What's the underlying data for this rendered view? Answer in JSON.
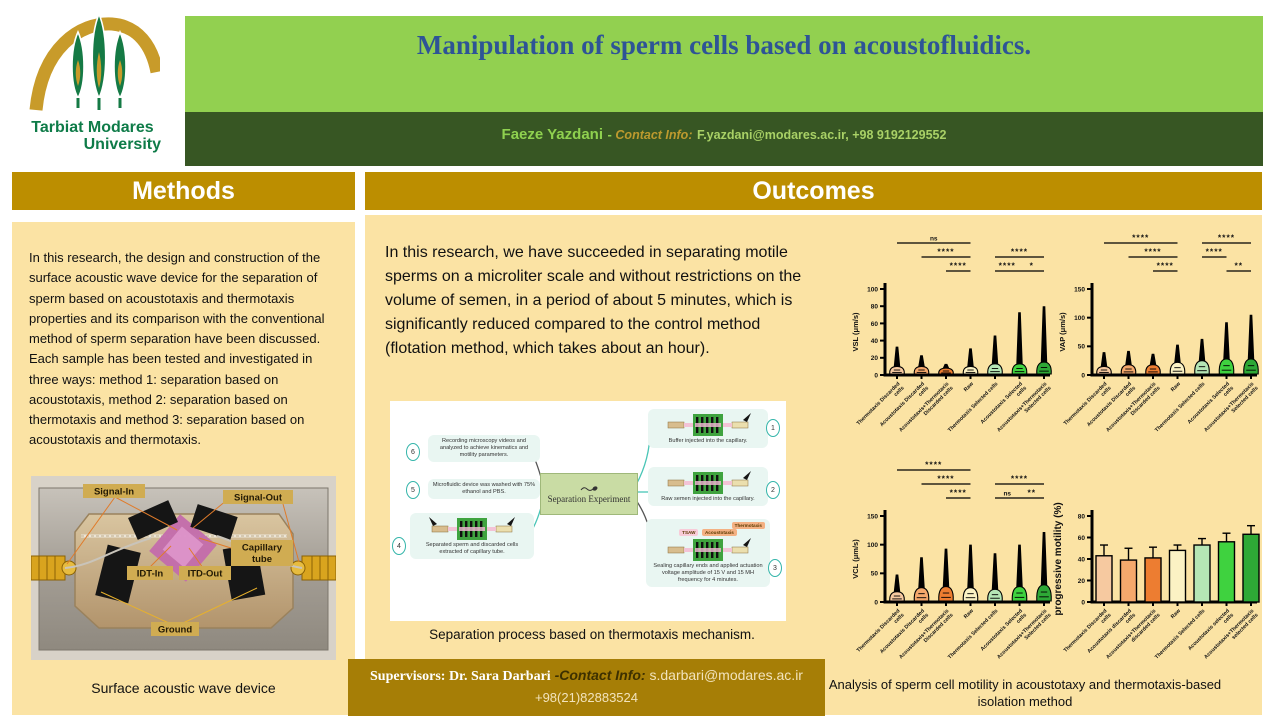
{
  "logo": {
    "line1": "Tarbiat Modares",
    "line2": "University"
  },
  "header": {
    "title": "Manipulation of sperm cells based on acoustofluidics.",
    "author": "Faeze Yazdani",
    "dash": "- ",
    "contact_label": "Contact Info:",
    "contact_value": "F.yazdani@modares.ac.ir, +98 9192129552"
  },
  "methods": {
    "heading": "Methods",
    "paragraph": "In this research, the design and construction of the surface acoustic wave device for the separation of sperm based on acoustotaxis and thermotaxis properties and its comparison with the conventional method of sperm separation have been discussed. Each sample has been tested and investigated in three ways: method 1: separation based on acoustotaxis, method 2: separation based on thermotaxis and method 3: separation based on acoustotaxis and thermotaxis.",
    "photo": {
      "labels": {
        "signal_in": "Signal-In",
        "signal_out": "Signal-Out",
        "capillary_1": "Capillary",
        "capillary_2": "tube",
        "idt_in": "IDT-In",
        "itd_out": "ITD-Out",
        "ground": "Ground"
      },
      "caption": "Surface acoustic wave device"
    }
  },
  "outcomes": {
    "heading": "Outcomes",
    "paragraph": "In this research, we have succeeded in separating motile sperms on a microliter scale and without restrictions on the volume of semen, in a period of about 5 minutes, which is significantly reduced compared to the control method (flotation method, which takes about an hour).",
    "diagram": {
      "center_label": "Separation Experiment",
      "nodes": [
        {
          "num": "1",
          "text": "Buffer injected into the capillary."
        },
        {
          "num": "2",
          "text": "Raw semen injected into the capillary."
        },
        {
          "num": "3",
          "text": "Sealing capillary ends and applied actuation voltage amplitude of 15 V and 15 MH frequency for 4 minutes."
        },
        {
          "num": "4",
          "text": "Separated sperm and discarded cells extracted of capillary tube."
        },
        {
          "num": "5",
          "text": "Microfluidic device was washed with 75% ethanol and PBS."
        },
        {
          "num": "6",
          "text": "Recording microscopy videos and analyzed to achieve kinematics and motility parameters."
        }
      ],
      "arrow_labels": {
        "tsaw": "TSAW",
        "thermotaxis": "Thermotaxis",
        "acoustotaxis": "Acoustotaxis"
      },
      "caption": "Separation process based on thermotaxis mechanism."
    }
  },
  "supervisors": {
    "label": "Supervisors: Dr. Sara Darbari",
    "dash": " -",
    "contact_label": "Contact Info:",
    "email": " s.darbari@modares.ac.ir",
    "phone": "+98(21)82883524"
  },
  "figures_caption": "Analysis of sperm cell motility in acoustotaxy and thermotaxis-based isolation method",
  "chart_data": [
    {
      "type": "violin",
      "ylabel": "VSL (μm/s)",
      "ylim": [
        0,
        100
      ],
      "yticks": [
        0,
        20,
        40,
        60,
        80,
        100
      ],
      "categories": [
        "Thermotaxis Discarded cells",
        "Acoustotaxis Discarded cells",
        "Acoustotaxis+Thermotaxis Discarded cells",
        "Raw",
        "Thermotaxis Selected cells",
        "Acoustotaxis Selected cells",
        "Acoustotaxis+Thermotaxis Selected cells"
      ],
      "colors": [
        "#F6C9A0",
        "#F5A86C",
        "#ED7D31",
        "#FBF2C4",
        "#B5E6B5",
        "#3FD23F",
        "#2EA836"
      ],
      "max_values": [
        33,
        23,
        13,
        31,
        46,
        73,
        80
      ],
      "bulb_tops": [
        10,
        10,
        8,
        10,
        13,
        13,
        15
      ],
      "annotations": [
        {
          "text": "ns",
          "from": 0,
          "to": 3,
          "row": 0
        },
        {
          "text": "****",
          "from": 1,
          "to": 3,
          "row": 1
        },
        {
          "text": "****",
          "from": 4,
          "to": 6,
          "row": 1
        },
        {
          "text": "****",
          "from": 2,
          "to": 3,
          "row": 2
        },
        {
          "text": "****",
          "from": 4,
          "to": 5,
          "row": 2
        },
        {
          "text": "*",
          "from": 5,
          "to": 6,
          "row": 2
        }
      ]
    },
    {
      "type": "violin",
      "ylabel": "VAP (μm/s)",
      "ylim": [
        0,
        150
      ],
      "yticks": [
        0,
        50,
        100,
        150
      ],
      "categories": [
        "Thermotaxis Discarded cells",
        "Acoustotaxis Discarded cells",
        "Acoustotaxis+Thermotaxis Discarded cells",
        "Raw",
        "Thermotaxis Selected cells",
        "Acoustotaxis Selected cells",
        "Acoustotaxis+Thermotaxis Selected cells"
      ],
      "colors": [
        "#F6C9A0",
        "#F5A86C",
        "#ED7D31",
        "#FBF2C4",
        "#B5E6B5",
        "#3FD23F",
        "#2EA836"
      ],
      "max_values": [
        40,
        42,
        37,
        53,
        63,
        92,
        105
      ],
      "bulb_tops": [
        15,
        18,
        18,
        22,
        25,
        28,
        28
      ],
      "annotations": [
        {
          "text": "****",
          "from": 0,
          "to": 3,
          "row": 0
        },
        {
          "text": "****",
          "from": 4,
          "to": 6,
          "row": 0
        },
        {
          "text": "****",
          "from": 1,
          "to": 3,
          "row": 1
        },
        {
          "text": "****",
          "from": 4,
          "to": 5,
          "row": 1
        },
        {
          "text": "****",
          "from": 2,
          "to": 3,
          "row": 2
        },
        {
          "text": "**",
          "from": 5,
          "to": 6,
          "row": 2
        }
      ]
    },
    {
      "type": "violin",
      "ylabel": "VCL (μm/s)",
      "ylim": [
        0,
        150
      ],
      "yticks": [
        0,
        50,
        100,
        150
      ],
      "categories": [
        "Thermotaxis Discarded cells",
        "Acoustotaxis Discarded cells",
        "Acoustotaxis+Thermotaxis Discarded cells",
        "Raw",
        "Thermotaxis Selected cells",
        "Acoustotaxis Selected cells",
        "Acoustotaxis+Thermotaxis Selected cells"
      ],
      "colors": [
        "#F6C9A0",
        "#F5A86C",
        "#ED7D31",
        "#FBF2C4",
        "#B5E6B5",
        "#3FD23F",
        "#2EA836"
      ],
      "max_values": [
        48,
        78,
        93,
        100,
        85,
        100,
        122
      ],
      "bulb_tops": [
        18,
        25,
        27,
        25,
        22,
        27,
        30
      ],
      "annotations": [
        {
          "text": "****",
          "from": 0,
          "to": 3,
          "row": 0
        },
        {
          "text": "****",
          "from": 1,
          "to": 3,
          "row": 1
        },
        {
          "text": "****",
          "from": 4,
          "to": 6,
          "row": 1
        },
        {
          "text": "****",
          "from": 2,
          "to": 3,
          "row": 2
        },
        {
          "text": "ns",
          "from": 4,
          "to": 5,
          "row": 2
        },
        {
          "text": "**",
          "from": 5,
          "to": 6,
          "row": 2
        }
      ]
    },
    {
      "type": "bar",
      "ylabel": "progressive motility (%)",
      "ylim": [
        0,
        80
      ],
      "yticks": [
        0,
        20,
        40,
        60,
        80
      ],
      "categories": [
        "Thermotaxis Discarded cells",
        "Acoustotaxis discarded cells",
        "Acoustotaxis+Thermotaxis discarded cells",
        "Raw",
        "Thermotaxis Selected cells",
        "Acoustotaxis selected cells",
        "Acoustotaxis+Thermotaxis selected cells"
      ],
      "colors": [
        "#F6C9A0",
        "#F5A86C",
        "#ED7D31",
        "#FBF2C4",
        "#B5E6B5",
        "#3FD23F",
        "#2EA836"
      ],
      "values": [
        43,
        39,
        41,
        48,
        53,
        56,
        63
      ],
      "errors": [
        10,
        11,
        10,
        5,
        6,
        8,
        8
      ]
    }
  ]
}
